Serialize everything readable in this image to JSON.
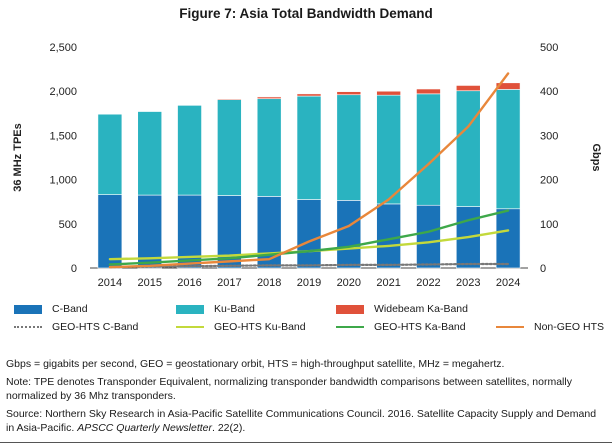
{
  "chart_data": {
    "type": "bar",
    "title": "Figure 7: Asia Total Bandwidth Demand",
    "categories": [
      "2014",
      "2015",
      "2016",
      "2017",
      "2018",
      "2019",
      "2020",
      "2021",
      "2022",
      "2023",
      "2024"
    ],
    "ylabel_left": "36 MHz TPEs",
    "ylabel_right": "Gbps",
    "ylim_left": [
      0,
      2500
    ],
    "ylim_right": [
      0,
      500
    ],
    "yticks_left": [
      "0",
      "500",
      "1,000",
      "1,500",
      "2,000",
      "2,500"
    ],
    "yticks_right": [
      "0",
      "100",
      "200",
      "300",
      "400",
      "500"
    ],
    "bar_series": [
      {
        "name": "C-Band",
        "axis": "left",
        "color": "#1a73b8",
        "values": [
          830,
          825,
          825,
          820,
          810,
          775,
          765,
          725,
          710,
          695,
          670
        ]
      },
      {
        "name": "Ku-Band",
        "axis": "left",
        "color": "#2ab3c0",
        "values": [
          910,
          945,
          1015,
          1085,
          1105,
          1170,
          1195,
          1230,
          1260,
          1310,
          1350
        ]
      },
      {
        "name": "Widebeam Ka-Band",
        "axis": "left",
        "color": "#e0513a",
        "values": [
          0,
          0,
          0,
          10,
          20,
          25,
          35,
          45,
          55,
          60,
          75
        ]
      }
    ],
    "line_series": [
      {
        "name": "GEO-HTS C-Band",
        "axis": "right",
        "color": "#777777",
        "style": "dotted",
        "values": [
          2,
          3,
          4,
          5,
          6,
          6,
          7,
          7,
          8,
          9,
          9
        ]
      },
      {
        "name": "GEO-HTS Ku-Band",
        "axis": "right",
        "color": "#c3d93b",
        "style": "solid",
        "values": [
          20,
          22,
          25,
          28,
          33,
          38,
          44,
          50,
          58,
          70,
          85
        ]
      },
      {
        "name": "GEO-HTS Ka-Band",
        "axis": "right",
        "color": "#3ea84a",
        "style": "solid",
        "values": [
          8,
          12,
          17,
          22,
          30,
          38,
          48,
          65,
          82,
          108,
          130
        ]
      },
      {
        "name": "Non-GEO HTS",
        "axis": "right",
        "color": "#e8873b",
        "style": "solid",
        "values": [
          2,
          5,
          10,
          15,
          20,
          60,
          95,
          155,
          235,
          320,
          440
        ]
      }
    ],
    "legend_order": [
      "C-Band",
      "Ku-Band",
      "Widebeam Ka-Band",
      "GEO-HTS C-Band",
      "GEO-HTS Ku-Band",
      "GEO-HTS Ka-Band",
      "Non-GEO HTS"
    ]
  },
  "notes": {
    "abbreviations": "Gbps = gigabits per second, GEO = geostationary orbit, HTS = high-throughput satellite, MHz = megahertz.",
    "note": "Note: TPE denotes Transponder Equivalent, normalizing transponder bandwidth comparisons between satellites, normally normalized by 36 Mhz transponders.",
    "source_prefix": "Source: Northern Sky Research in Asia-Pacific Satellite Communications Council. 2016. Satellite Capacity Supply and Demand in Asia-Pacific. ",
    "source_journal": "APSCC Quarterly Newsletter",
    "source_suffix": ". 22(2)."
  }
}
